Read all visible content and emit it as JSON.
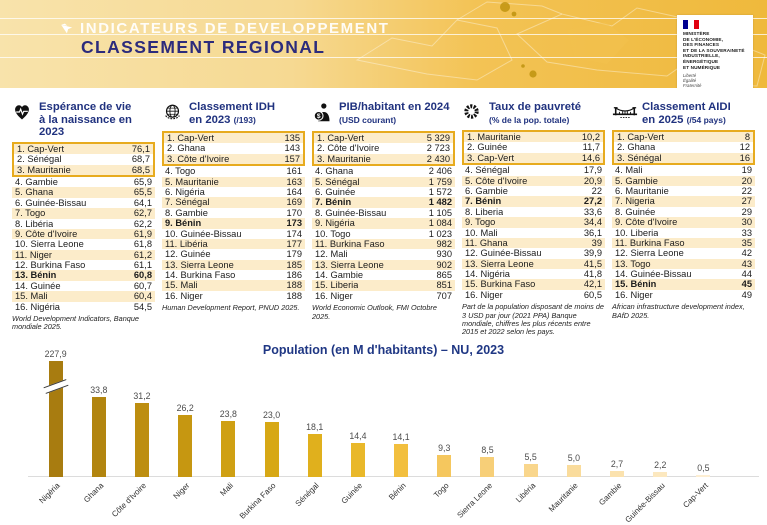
{
  "header": {
    "kicker": "INDICATEURS DE DEVELOPPEMENT",
    "title": "CLASSEMENT REGIONAL",
    "ministry": {
      "lines": [
        "MINISTÈRE",
        "DE L'ÉCONOMIE,",
        "DES FINANCES",
        "ET DE LA SOUVERAINETÉ",
        "INDUSTRIELLE, ÉNERGÉTIQUE",
        "ET NUMÉRIQUE"
      ],
      "motto": [
        "Liberté",
        "Égalité",
        "Fraternité"
      ]
    }
  },
  "colors": {
    "band_gold": "#efb93c",
    "band_sand": "#f8e3ab",
    "navy": "#2c2b7c",
    "table_title_blue": "#20327f",
    "row_stripe": "#fcecca",
    "top3_border": "#e7ab1e",
    "chart_title_blue": "#1f3784"
  },
  "tables": [
    {
      "id": "esperance-de-vie",
      "icon": "heart-pulse-icon",
      "title1": "Espérance de vie",
      "title2": "à la naissance en 2023",
      "note": "",
      "highlight_rank": 13,
      "source": "World Development Indicators, Banque mondiale 2025.",
      "rows": [
        [
          "Cap-Vert",
          "76,1"
        ],
        [
          "Sénégal",
          "68,7"
        ],
        [
          "Mauritanie",
          "68,5"
        ],
        [
          "Gambie",
          "65,9"
        ],
        [
          "Ghana",
          "65,5"
        ],
        [
          "Guinée-Bissau",
          "64,1"
        ],
        [
          "Togo",
          "62,7"
        ],
        [
          "Libéria",
          "62,2"
        ],
        [
          "Côte d'Ivoire",
          "61,9"
        ],
        [
          "Sierra Leone",
          "61,8"
        ],
        [
          "Niger",
          "61,2"
        ],
        [
          "Burkina Faso",
          "61,1"
        ],
        [
          "Bénin",
          "60,8"
        ],
        [
          "Guinée",
          "60,7"
        ],
        [
          "Mali",
          "60,4"
        ],
        [
          "Nigéria",
          "54,5"
        ]
      ]
    },
    {
      "id": "classement-idh",
      "icon": "un-logo-icon",
      "title1": "Classement IDH",
      "title2": "en 2023",
      "note": "(/193)",
      "highlight_rank": 9,
      "source": "Human Development Report, PNUD 2025.",
      "rows": [
        [
          "Cap-Vert",
          "135"
        ],
        [
          "Ghana",
          "143"
        ],
        [
          "Côte d'Ivoire",
          "157"
        ],
        [
          "Togo",
          "161"
        ],
        [
          "Mauritanie",
          "163"
        ],
        [
          "Nigéria",
          "164"
        ],
        [
          "Sénégal",
          "169"
        ],
        [
          "Gambie",
          "170"
        ],
        [
          "Bénin",
          "173"
        ],
        [
          "Guinée-Bissau",
          "174"
        ],
        [
          "Libéria",
          "177"
        ],
        [
          "Guinée",
          "179"
        ],
        [
          "Sierra Leone",
          "185"
        ],
        [
          "Burkina Faso",
          "186"
        ],
        [
          "Mali",
          "188"
        ],
        [
          "Niger",
          "188"
        ]
      ]
    },
    {
      "id": "pib-habitant",
      "icon": "person-dollar-icon",
      "title1": "PIB/habitant en 2024",
      "title2": "",
      "note": "(USD courant)",
      "highlight_rank": 7,
      "source": "World Economic Outlook, FMI Octobre 2025.",
      "rows": [
        [
          "Cap-Vert",
          "5 329"
        ],
        [
          "Côte d'Ivoire",
          "2 723"
        ],
        [
          "Mauritanie",
          "2 430"
        ],
        [
          "Ghana",
          "2 406"
        ],
        [
          "Sénégal",
          "1 759"
        ],
        [
          "Guinée",
          "1 572"
        ],
        [
          "Bénin",
          "1 482"
        ],
        [
          "Guinée-Bissau",
          "1 105"
        ],
        [
          "Nigéria",
          "1 084"
        ],
        [
          "Togo",
          "1 023"
        ],
        [
          "Burkina Faso",
          "982"
        ],
        [
          "Mali",
          "930"
        ],
        [
          "Sierra Leone",
          "902"
        ],
        [
          "Gambie",
          "865"
        ],
        [
          "Liberia",
          "851"
        ],
        [
          "Niger",
          "707"
        ]
      ]
    },
    {
      "id": "taux-de-pauvrete",
      "icon": "coin-icon",
      "title1": "Taux de pauvreté",
      "title2": "",
      "note": "(% de la pop. totale)",
      "highlight_rank": 7,
      "source": "Part de la population disposant de moins de 3 USD par jour (2021 PPA) Banque mondiale, chiffres les plus récents entre 2015 et 2022 selon les pays.",
      "rows": [
        [
          "Mauritanie",
          "10,2"
        ],
        [
          "Guinée",
          "11,7"
        ],
        [
          "Cap-Vert",
          "14,6"
        ],
        [
          "Sénégal",
          "17,9"
        ],
        [
          "Côte d'Ivoire",
          "20,9"
        ],
        [
          "Gambie",
          "22"
        ],
        [
          "Bénin",
          "27,2"
        ],
        [
          "Liberia",
          "33,6"
        ],
        [
          "Togo",
          "34,4"
        ],
        [
          "Mali",
          "36,1"
        ],
        [
          "Ghana",
          "39"
        ],
        [
          "Guinée-Bissau",
          "39,9"
        ],
        [
          "Sierra Leone",
          "41,5"
        ],
        [
          "Nigéria",
          "41,8"
        ],
        [
          "Burkina Faso",
          "42,1"
        ],
        [
          "Niger",
          "60,5"
        ]
      ]
    },
    {
      "id": "classement-aidi",
      "icon": "bridge-icon",
      "title1": "Classement AIDI",
      "title2": "en 2025",
      "note": "(/54 pays)",
      "highlight_rank": 15,
      "source": "African infrastructure development index, BAfD 2025.",
      "rows": [
        [
          "Cap-Vert",
          "8"
        ],
        [
          "Ghana",
          "12"
        ],
        [
          "Sénégal",
          "16"
        ],
        [
          "Mali",
          "19"
        ],
        [
          "Gambie",
          "20"
        ],
        [
          "Mauritanie",
          "22"
        ],
        [
          "Nigeria",
          "27"
        ],
        [
          "Guinée",
          "29"
        ],
        [
          "Côte d'Ivoire",
          "30"
        ],
        [
          "Liberia",
          "33"
        ],
        [
          "Burkina Faso",
          "35"
        ],
        [
          "Sierra Leone",
          "42"
        ],
        [
          "Togo",
          "43"
        ],
        [
          "Guinée-Bissau",
          "44"
        ],
        [
          "Bénin",
          "45"
        ],
        [
          "Niger",
          "49"
        ]
      ]
    }
  ],
  "chart_data": {
    "type": "bar",
    "title": "Population (en M d'habitants) – NU, 2023",
    "categories": [
      "Nigéria",
      "Ghana",
      "Côte d'Ivoire",
      "Niger",
      "Mali",
      "Burkina Faso",
      "Sénégal",
      "Guinée",
      "Bénin",
      "Togo",
      "Sierra Leone",
      "Libéria",
      "Mauritanie",
      "Gambie",
      "Guinée-Bissau",
      "Cap-Vert"
    ],
    "values": [
      227.9,
      33.8,
      31.2,
      26.2,
      23.8,
      23.0,
      18.1,
      14.4,
      14.1,
      9.3,
      8.5,
      5.5,
      5.0,
      2.7,
      2.2,
      0.5
    ],
    "value_labels": [
      "227,9",
      "33,8",
      "31,2",
      "26,2",
      "23,8",
      "23,0",
      "18,1",
      "14,4",
      "14,1",
      "9,3",
      "8,5",
      "5,5",
      "5,0",
      "2,7",
      "2,2",
      "0,5"
    ],
    "axis_break_category": "Nigéria",
    "xlabel": "",
    "ylabel": "",
    "grid": false,
    "legend_position": "none",
    "bar_colors": [
      "#a87c10",
      "#b2850f",
      "#bd8e10",
      "#c69711",
      "#cfa013",
      "#d7a815",
      "#e0b01d",
      "#e9b82a",
      "#f2bf3e",
      "#f5c75e",
      "#f7cf78",
      "#f9d68c",
      "#fadc9c",
      "#fbe2ae",
      "#fce8bf",
      "#fdeed2"
    ]
  }
}
